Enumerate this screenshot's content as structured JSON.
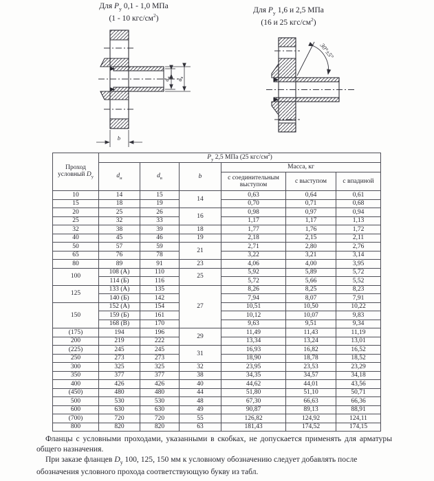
{
  "captions": {
    "left_line1": "Для <i>P</i><sub>у</sub> 0,1 - 1,0 МПа",
    "left_line2": "(1 - 10 кгс/см<sup>2</sup>)",
    "right_line1": "Для <i>P</i><sub>у</sub> 1,6 и 2,5 МПа",
    "right_line2": "(16 и 25 кгс/см<sup>2</sup>)"
  },
  "drawings": {
    "left": {
      "dim_inner_main": "d",
      "dim_inner_sub": "н",
      "dim_outer_main": "d",
      "dim_outer_sub": "в",
      "thickness_label": "b"
    },
    "right": {
      "angle_label": "30°±5°"
    }
  },
  "table": {
    "col1_header": "Проход<br>условный <i>D</i><sub>у</sub>",
    "group_header": "<i>P</i><sub>у</sub> 2,5 МПа (25 кгс/см<sup>2</sup>)",
    "col_dn": "<i>d</i><sub>н</sub>",
    "col_dv": "<i>d</i><sub>в</sub>",
    "col_b": "<i>b</i>",
    "mass_header": "Масса, кг",
    "mass_cols": [
      "с соединительным выступом",
      "с выступом",
      "с впадиной"
    ],
    "rows": [
      {
        "dy": "10",
        "dn": "14",
        "dv": "15",
        "b": "14",
        "bs": 2,
        "m": [
          "0,63",
          "0,64",
          "0,61"
        ]
      },
      {
        "dy": "15",
        "dn": "18",
        "dv": "19",
        "m": [
          "0,70",
          "0,71",
          "0,68"
        ]
      },
      {
        "dy": "20",
        "dn": "25",
        "dv": "26",
        "b": "16",
        "bs": 2,
        "m": [
          "0,98",
          "0,97",
          "0,94"
        ]
      },
      {
        "dy": "25",
        "dn": "32",
        "dv": "33",
        "m": [
          "1,17",
          "1,17",
          "1,13"
        ]
      },
      {
        "dy": "32",
        "dn": "38",
        "dv": "39",
        "b": "18",
        "m": [
          "1,77",
          "1,76",
          "1,72"
        ]
      },
      {
        "dy": "40",
        "dn": "45",
        "dv": "46",
        "b": "19",
        "m": [
          "2,18",
          "2,15",
          "2,11"
        ]
      },
      {
        "dy": "50",
        "dn": "57",
        "dv": "59",
        "b": "21",
        "bs": 2,
        "m": [
          "2,71",
          "2,80",
          "2,76"
        ]
      },
      {
        "dy": "65",
        "dn": "76",
        "dv": "78",
        "m": [
          "3,22",
          "3,21",
          "3,14"
        ]
      },
      {
        "dy": "80",
        "dn": "89",
        "dv": "91",
        "b": "23",
        "m": [
          "4,06",
          "4,00",
          "3,95"
        ]
      },
      {
        "dy": "100",
        "dys": 2,
        "dn": "108 (А)",
        "dv": "110",
        "b": "25",
        "bs": 2,
        "m": [
          "5,92",
          "5,89",
          "5,72"
        ]
      },
      {
        "dn": "114 (Б)",
        "dv": "116",
        "m": [
          "5,72",
          "5,66",
          "5,52"
        ]
      },
      {
        "dy": "125",
        "dys": 2,
        "dn": "133 (А)",
        "dv": "135",
        "b": "27",
        "bs": 5,
        "m": [
          "8,26",
          "8,25",
          "8,23"
        ]
      },
      {
        "dn": "140 (Б)",
        "dv": "142",
        "m": [
          "7,94",
          "8,07",
          "7,91"
        ]
      },
      {
        "dy": "150",
        "dys": 3,
        "dn": "152 (А)",
        "dv": "154",
        "m": [
          "10,51",
          "10,50",
          "10,22"
        ]
      },
      {
        "dn": "159 (Б)",
        "dv": "161",
        "m": [
          "10,12",
          "10,07",
          "9,83"
        ]
      },
      {
        "dn": "168 (В)",
        "dv": "170",
        "m": [
          "9,63",
          "9,51",
          "9,34"
        ]
      },
      {
        "dy": "(175)",
        "dn": "194",
        "dv": "196",
        "b": "29",
        "bs": 2,
        "m": [
          "11,49",
          "11,43",
          "11,19"
        ]
      },
      {
        "dy": "200",
        "dn": "219",
        "dv": "222",
        "m": [
          "13,34",
          "13,24",
          "13,01"
        ]
      },
      {
        "dy": "(225)",
        "dn": "245",
        "dv": "245",
        "b": "31",
        "bs": 2,
        "m": [
          "16,93",
          "16,82",
          "16,52"
        ]
      },
      {
        "dy": "250",
        "dn": "273",
        "dv": "273",
        "m": [
          "18,90",
          "18,78",
          "18,52"
        ]
      },
      {
        "dy": "300",
        "dn": "325",
        "dv": "325",
        "b": "32",
        "m": [
          "23,95",
          "23,53",
          "23,29"
        ]
      },
      {
        "dy": "350",
        "dn": "377",
        "dv": "377",
        "b": "38",
        "m": [
          "34,35",
          "34,57",
          "34,18"
        ]
      },
      {
        "dy": "400",
        "dn": "426",
        "dv": "426",
        "b": "40",
        "m": [
          "44,62",
          "44,01",
          "43,56"
        ]
      },
      {
        "dy": "(450)",
        "dn": "480",
        "dv": "480",
        "b": "44",
        "m": [
          "51,80",
          "51,10",
          "50,71"
        ]
      },
      {
        "dy": "500",
        "dn": "530",
        "dv": "530",
        "b": "48",
        "m": [
          "67,30",
          "66,63",
          "66,36"
        ]
      },
      {
        "dy": "600",
        "dn": "630",
        "dv": "630",
        "b": "49",
        "m": [
          "90,87",
          "89,13",
          "88,91"
        ]
      },
      {
        "dy": "(700)",
        "dn": "720",
        "dv": "720",
        "b": "55",
        "m": [
          "126,82",
          "124,92",
          "124,11"
        ]
      },
      {
        "dy": "800",
        "dn": "820",
        "dv": "820",
        "b": "63",
        "m": [
          "181,43",
          "174,52",
          "174,15"
        ]
      }
    ]
  },
  "footnotes": {
    "para1": "Фланцы с условными проходами, указанными в скобках, не допускается применять для арматуры общего назначения.",
    "para2": "При заказе фланцев <i>D</i><sub>у</sub> 100, 125, 150 мм к условному обозначению следует добавлять после обозначения условного прохода соответствующую букву из табл."
  }
}
